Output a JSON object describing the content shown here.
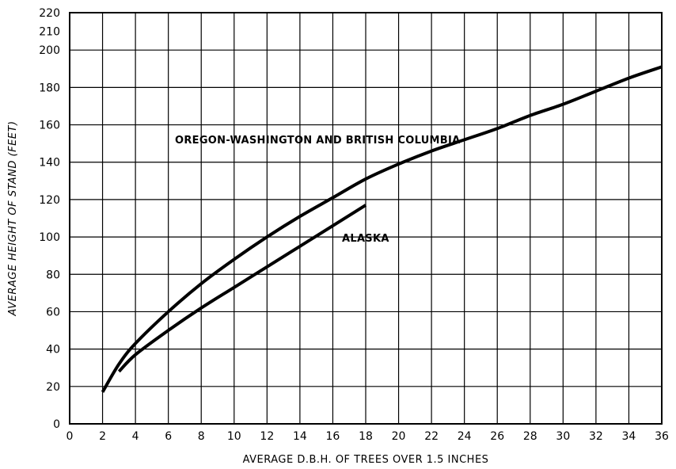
{
  "chart_data": {
    "type": "line",
    "title": "",
    "xlabel": "AVERAGE D.B.H. OF TREES OVER 1.5 INCHES",
    "ylabel": "AVERAGE HEIGHT OF STAND (FEET)",
    "xlim": [
      0,
      36
    ],
    "ylim": [
      0,
      220
    ],
    "xticks": [
      0,
      2,
      4,
      6,
      8,
      10,
      12,
      14,
      16,
      18,
      20,
      22,
      24,
      26,
      28,
      30,
      32,
      34,
      36
    ],
    "yticks": [
      0,
      20,
      40,
      60,
      80,
      100,
      120,
      140,
      160,
      180,
      200,
      210,
      220
    ],
    "grid": true,
    "grid_x_step": 2,
    "grid_y_step": 20,
    "series": [
      {
        "name": "OREGON-WASHINGTON AND BRITISH COLUMBIA",
        "x": [
          2,
          3,
          4,
          6,
          8,
          10,
          12,
          14,
          16,
          18,
          20,
          22,
          24,
          26,
          28,
          30,
          32,
          34,
          36
        ],
        "y": [
          17,
          32,
          43,
          60,
          75,
          88,
          100,
          111,
          121,
          131,
          139,
          146,
          152,
          158,
          165,
          171,
          178,
          185,
          191
        ]
      },
      {
        "name": "ALASKA",
        "x": [
          3,
          4,
          6,
          8,
          10,
          12,
          14,
          16,
          18
        ],
        "y": [
          28,
          37,
          50,
          62,
          73,
          84,
          95,
          106,
          117
        ]
      }
    ]
  }
}
